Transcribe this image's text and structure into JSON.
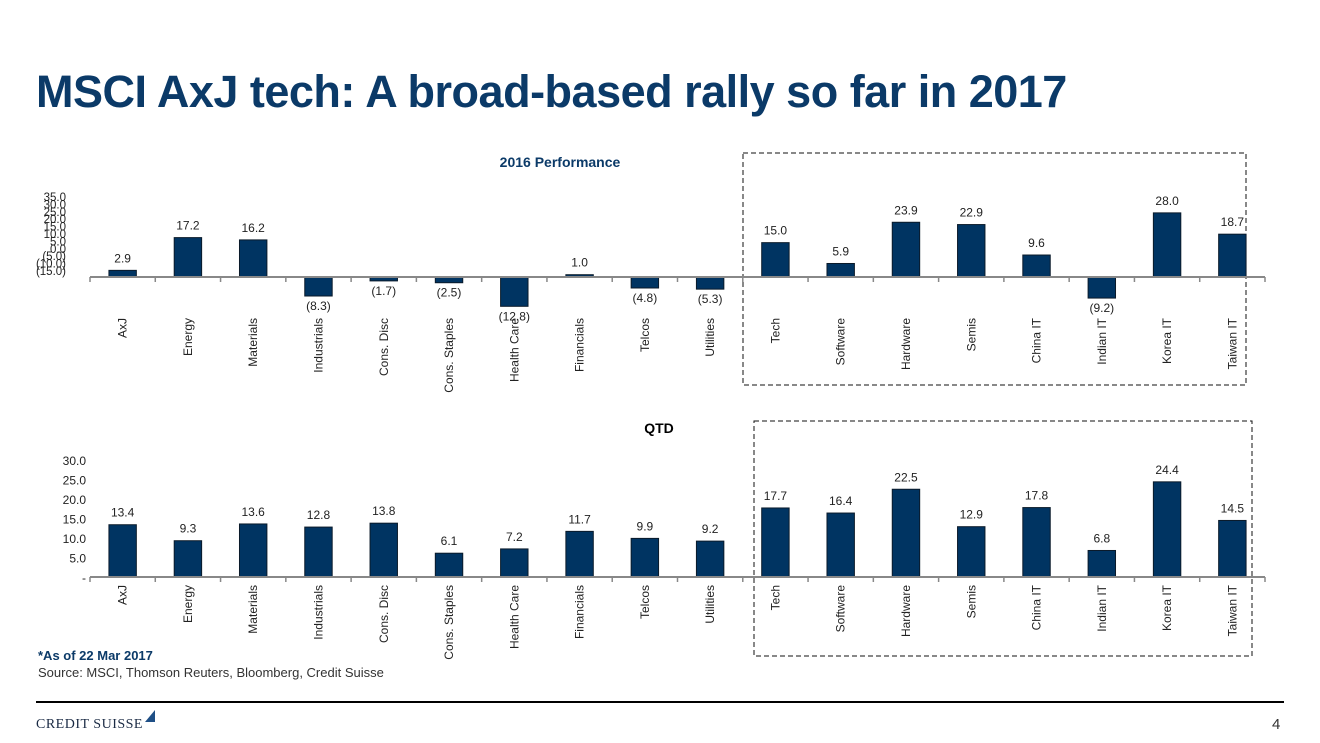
{
  "slide": {
    "title": "MSCI AxJ tech: A broad-based rally so far in 2017",
    "footnote": "*As of 22 Mar 2017",
    "source": "Source: MSCI, Thomson Reuters, Bloomberg, Credit Suisse",
    "logo_text": "CREDIT SUISSE",
    "page_number": "4",
    "bar_color": "#003462",
    "title_color": "#0b3a68"
  },
  "chart_data": [
    {
      "type": "bar",
      "title": "2016 Performance",
      "xlabel": "",
      "ylabel": "",
      "ylim": [
        -15,
        35
      ],
      "yticks": [
        35,
        30,
        25,
        20,
        15,
        10,
        5,
        0,
        -5,
        -10,
        -15
      ],
      "ytick_labels": [
        "35.0",
        "30.0",
        "25.0",
        "20.0",
        "15.0",
        "10.0",
        "5.0",
        "0.0",
        "(5.0)",
        "(10.0)",
        "(15.0)"
      ],
      "categories": [
        "AxJ",
        "Energy",
        "Materials",
        "Industrials",
        "Cons. Disc",
        "Cons. Staples",
        "Health Care",
        "Financials",
        "Telcos",
        "Utilities",
        "Tech",
        "Software",
        "Hardware",
        "Semis",
        "China IT",
        "Indian IT",
        "Korea IT",
        "Taiwan IT"
      ],
      "values": [
        2.9,
        17.2,
        16.2,
        -8.3,
        -1.7,
        -2.5,
        -12.8,
        1.0,
        -4.8,
        -5.3,
        15.0,
        5.9,
        23.9,
        22.9,
        9.6,
        -9.2,
        28.0,
        18.7
      ],
      "value_labels": [
        "2.9",
        "17.2",
        "16.2",
        "(8.3)",
        "(1.7)",
        "(2.5)",
        "(12.8)",
        "1.0",
        "(4.8)",
        "(5.3)",
        "15.0",
        "5.9",
        "23.9",
        "22.9",
        "9.6",
        "(9.2)",
        "28.0",
        "18.7"
      ],
      "highlight": {
        "from": "Tech",
        "to": "Taiwan IT",
        "style": "dashed-box"
      },
      "grid": false,
      "legend": "none"
    },
    {
      "type": "bar",
      "title": "QTD",
      "xlabel": "",
      "ylabel": "",
      "ylim": [
        0,
        30
      ],
      "yticks": [
        30,
        25,
        20,
        15,
        10,
        5,
        0
      ],
      "ytick_labels": [
        "30.0",
        "25.0",
        "20.0",
        "15.0",
        "10.0",
        "5.0",
        "-"
      ],
      "categories": [
        "AxJ",
        "Energy",
        "Materials",
        "Industrials",
        "Cons. Disc",
        "Cons. Staples",
        "Health Care",
        "Financials",
        "Telcos",
        "Utilities",
        "Tech",
        "Software",
        "Hardware",
        "Semis",
        "China IT",
        "Indian IT",
        "Korea IT",
        "Taiwan IT"
      ],
      "values": [
        13.4,
        9.3,
        13.6,
        12.8,
        13.8,
        6.1,
        7.2,
        11.7,
        9.9,
        9.2,
        17.7,
        16.4,
        22.5,
        12.9,
        17.8,
        6.8,
        24.4,
        14.5
      ],
      "value_labels": [
        "13.4",
        "9.3",
        "13.6",
        "12.8",
        "13.8",
        "6.1",
        "7.2",
        "11.7",
        "9.9",
        "9.2",
        "17.7",
        "16.4",
        "22.5",
        "12.9",
        "17.8",
        "6.8",
        "24.4",
        "14.5"
      ],
      "highlight": {
        "from": "Tech",
        "to": "Taiwan IT",
        "style": "dashed-box"
      },
      "grid": false,
      "legend": "none"
    }
  ]
}
